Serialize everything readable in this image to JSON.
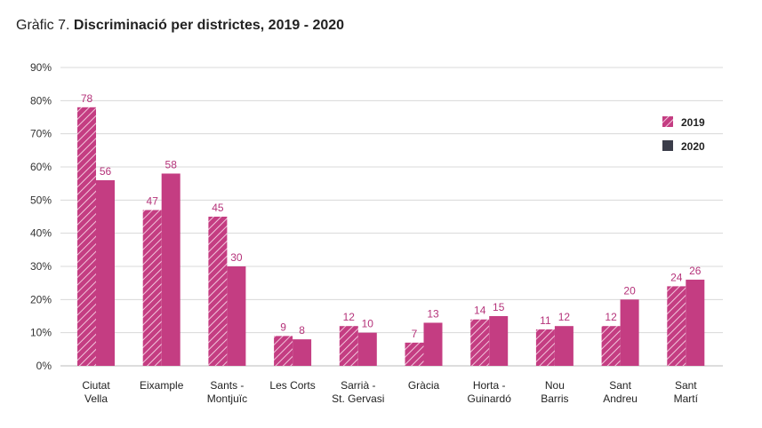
{
  "title": {
    "prefix": "Gràfic 7.",
    "main": "Discriminació per districtes, 2019 - 2020"
  },
  "colors": {
    "bar": "#c43d82",
    "hatch_line": "#f2c6dc",
    "grid": "#d8d8d8",
    "legend_2020": "#3b3d4a"
  },
  "chart_data": {
    "type": "bar",
    "categories": [
      [
        "Ciutat",
        "Vella"
      ],
      [
        "Eixample"
      ],
      [
        "Sants -",
        "Montjuïc"
      ],
      [
        "Les Corts"
      ],
      [
        "Sarrià -",
        "St. Gervasi"
      ],
      [
        "Gràcia"
      ],
      [
        "Horta -",
        "Guinardó"
      ],
      [
        "Nou",
        "Barris"
      ],
      [
        "Sant",
        "Andreu"
      ],
      [
        "Sant",
        "Martí"
      ]
    ],
    "series": [
      {
        "name": "2019",
        "pattern": "hatched",
        "values": [
          78,
          47,
          45,
          9,
          12,
          7,
          14,
          11,
          12,
          24
        ]
      },
      {
        "name": "2020",
        "pattern": "solid",
        "values": [
          56,
          58,
          30,
          8,
          10,
          13,
          15,
          12,
          20,
          26
        ]
      }
    ],
    "yticks": [
      "0%",
      "10%",
      "20%",
      "30%",
      "40%",
      "50%",
      "60%",
      "70%",
      "80%",
      "90%"
    ],
    "ylim": [
      0,
      90
    ],
    "grid": true,
    "legend_position": "right"
  }
}
